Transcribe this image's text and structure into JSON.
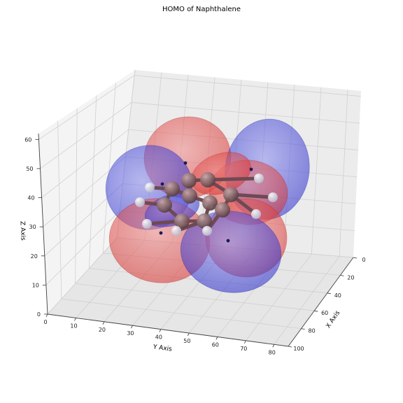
{
  "chart_data": {
    "type": "scatter",
    "projection": "3d",
    "title": "HOMO of Naphthalene",
    "xlabel": "X Axis",
    "ylabel": "Y Axis",
    "zlabel": "Z Axis",
    "xlim": [
      0,
      100
    ],
    "ylim": [
      0,
      85
    ],
    "zlim": [
      0,
      62
    ],
    "xticks": [
      0,
      20,
      40,
      60,
      80,
      100
    ],
    "yticks": [
      0,
      10,
      20,
      30,
      40,
      50,
      60,
      70,
      80
    ],
    "zticks": [
      0,
      10,
      20,
      30,
      40,
      50,
      60
    ],
    "grid": true,
    "colors": {
      "positive_lobe": "#e8413f",
      "negative_lobe": "#3b3ddc",
      "carbon": "#8a6a6a",
      "hydrogen": "#e8e8f2",
      "pane": "#f2f2f2",
      "grid": "#d6d6d6"
    },
    "atoms": [
      {
        "element": "C",
        "label": "C1"
      },
      {
        "element": "C",
        "label": "C2"
      },
      {
        "element": "C",
        "label": "C3"
      },
      {
        "element": "C",
        "label": "C4"
      },
      {
        "element": "C",
        "label": "C5"
      },
      {
        "element": "C",
        "label": "C6"
      },
      {
        "element": "C",
        "label": "C7"
      },
      {
        "element": "C",
        "label": "C8"
      },
      {
        "element": "C",
        "label": "C9"
      },
      {
        "element": "C",
        "label": "C10"
      },
      {
        "element": "H",
        "label": "H1"
      },
      {
        "element": "H",
        "label": "H2"
      },
      {
        "element": "H",
        "label": "H3"
      },
      {
        "element": "H",
        "label": "H4"
      },
      {
        "element": "H",
        "label": "H5"
      },
      {
        "element": "H",
        "label": "H6"
      },
      {
        "element": "H",
        "label": "H7"
      },
      {
        "element": "H",
        "label": "H8"
      }
    ]
  }
}
